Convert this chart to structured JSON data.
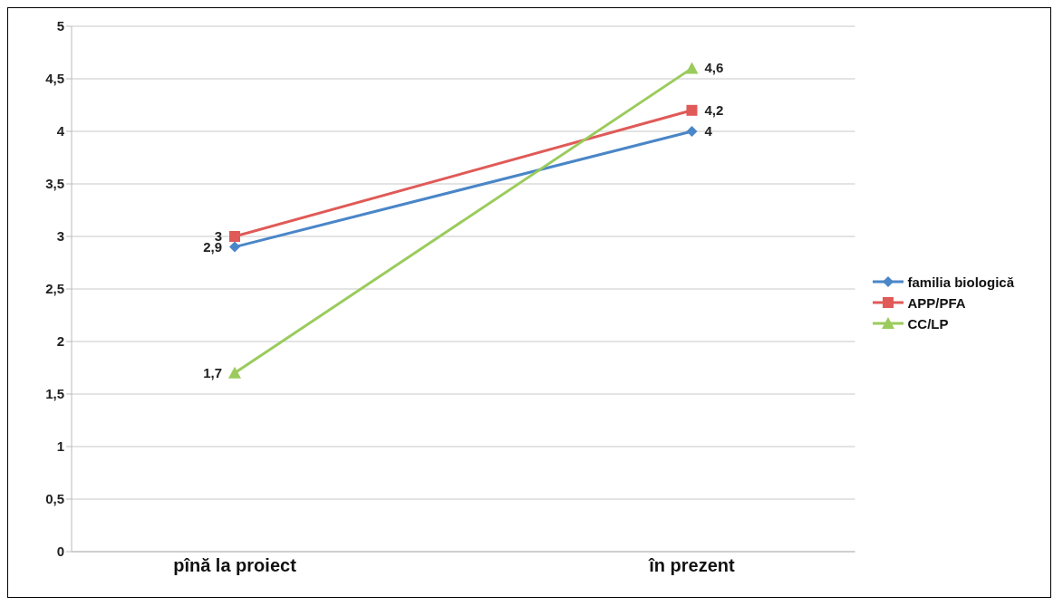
{
  "chart_data": {
    "type": "line",
    "categories": [
      "pînă la proiect",
      "în prezent"
    ],
    "series": [
      {
        "name": "familia biologică",
        "color": "#4a86c8",
        "values": [
          2.9,
          4
        ],
        "value_labels": [
          "2,9",
          "4"
        ],
        "marker": "diamond"
      },
      {
        "name": "APP/PFA",
        "color": "#e05a57",
        "values": [
          3,
          4.2
        ],
        "value_labels": [
          "3",
          "4,2"
        ],
        "marker": "square"
      },
      {
        "name": "CC/LP",
        "color": "#9acb5c",
        "values": [
          1.7,
          4.6
        ],
        "value_labels": [
          "1,7",
          "4,6"
        ],
        "marker": "triangle"
      }
    ],
    "ylim": [
      0,
      5
    ],
    "yticks": [
      {
        "value": 0,
        "label": "0"
      },
      {
        "value": 0.5,
        "label": "0,5"
      },
      {
        "value": 1,
        "label": "1"
      },
      {
        "value": 1.5,
        "label": "1,5"
      },
      {
        "value": 2,
        "label": "2"
      },
      {
        "value": 2.5,
        "label": "2,5"
      },
      {
        "value": 3,
        "label": "3"
      },
      {
        "value": 3.5,
        "label": "3,5"
      },
      {
        "value": 4,
        "label": "4"
      },
      {
        "value": 4.5,
        "label": "4,5"
      },
      {
        "value": 5,
        "label": "5"
      }
    ],
    "grid": "y",
    "legend": "right"
  }
}
